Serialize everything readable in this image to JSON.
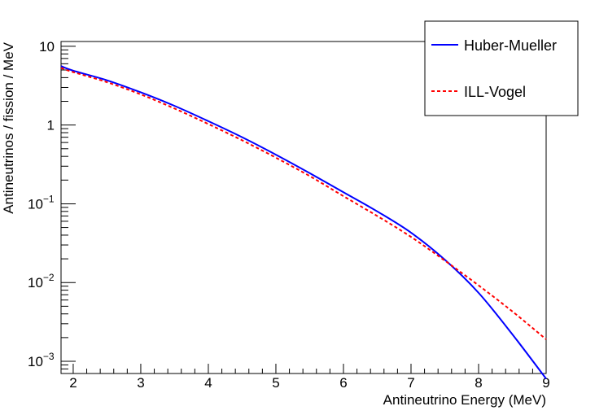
{
  "chart_data": {
    "type": "line",
    "title": "",
    "xlabel": "Antineutrino Energy (MeV)",
    "ylabel": "Antineutrinos / fission / MeV",
    "xlim": [
      1.82,
      9.0
    ],
    "ylim": [
      0.0007,
      11.5
    ],
    "yscale": "log",
    "grid": false,
    "legend_position": "top-right",
    "x_ticks": [
      2,
      3,
      4,
      5,
      6,
      7,
      8,
      9
    ],
    "x_tick_labels": [
      "2",
      "3",
      "4",
      "5",
      "6",
      "7",
      "8",
      "9"
    ],
    "y_ticks": [
      {
        "value": 10,
        "mantissa": "10",
        "exponent": ""
      },
      {
        "value": 1,
        "mantissa": "1",
        "exponent": ""
      },
      {
        "value": 0.1,
        "mantissa": "10",
        "exponent": "−1"
      },
      {
        "value": 0.01,
        "mantissa": "10",
        "exponent": "−2"
      },
      {
        "value": 0.001,
        "mantissa": "10",
        "exponent": "−3"
      }
    ],
    "series": [
      {
        "name": "Huber-Mueller",
        "color": "#0000ff",
        "style": "solid",
        "x": [
          1.82,
          2.0,
          2.5,
          3.0,
          3.5,
          4.0,
          4.5,
          5.0,
          5.5,
          6.0,
          6.5,
          7.0,
          7.5,
          8.0,
          8.5,
          9.0
        ],
        "y": [
          5.6,
          4.9,
          3.7,
          2.6,
          1.75,
          1.12,
          0.7,
          0.42,
          0.245,
          0.14,
          0.08,
          0.043,
          0.0195,
          0.0074,
          0.0022,
          0.0006
        ]
      },
      {
        "name": "ILL-Vogel",
        "color": "#ff0000",
        "style": "dashed",
        "x": [
          1.82,
          2.0,
          2.5,
          3.0,
          3.5,
          4.0,
          4.5,
          5.0,
          5.5,
          6.0,
          6.5,
          7.0,
          7.5,
          8.0,
          8.5,
          9.0
        ],
        "y": [
          5.3,
          4.7,
          3.5,
          2.45,
          1.62,
          1.03,
          0.64,
          0.385,
          0.225,
          0.125,
          0.07,
          0.038,
          0.019,
          0.0092,
          0.0043,
          0.0019
        ]
      }
    ]
  }
}
